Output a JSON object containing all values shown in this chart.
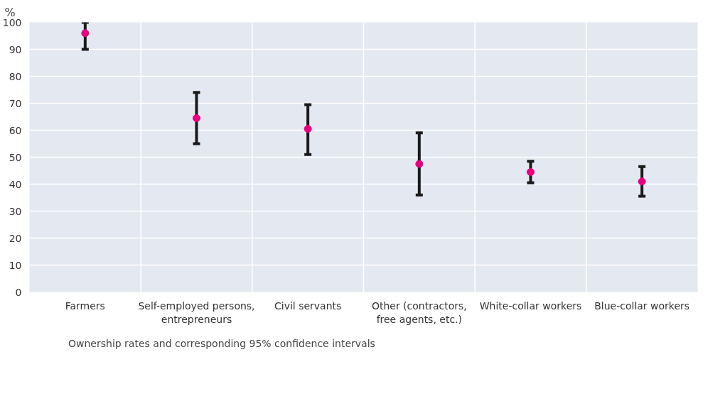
{
  "chart_data": {
    "type": "scatter",
    "ylabel": "%",
    "categories": [
      "Farmers",
      "Self-employed persons,\nentrepreneurs",
      "Civil servants",
      "Other (contractors,\nfree agents, etc.)",
      "White-collar workers",
      "Blue-collar workers"
    ],
    "series": [
      {
        "name": "Ownership rates and corresponding 95% confidence intervals",
        "color": "#e6007e",
        "values": [
          96,
          64.5,
          60.5,
          47.5,
          44.5,
          41
        ],
        "errors": [
          [
            90,
            100
          ],
          [
            55,
            74
          ],
          [
            51,
            69.5
          ],
          [
            36,
            59
          ],
          [
            40.5,
            48.5
          ],
          [
            35.5,
            46.5
          ]
        ]
      }
    ],
    "ylim": [
      0,
      100
    ],
    "yticks": [
      0,
      10,
      20,
      30,
      40,
      50,
      60,
      70,
      80,
      90,
      100
    ],
    "grid": true,
    "legend": "bottom",
    "marker": "circle"
  }
}
